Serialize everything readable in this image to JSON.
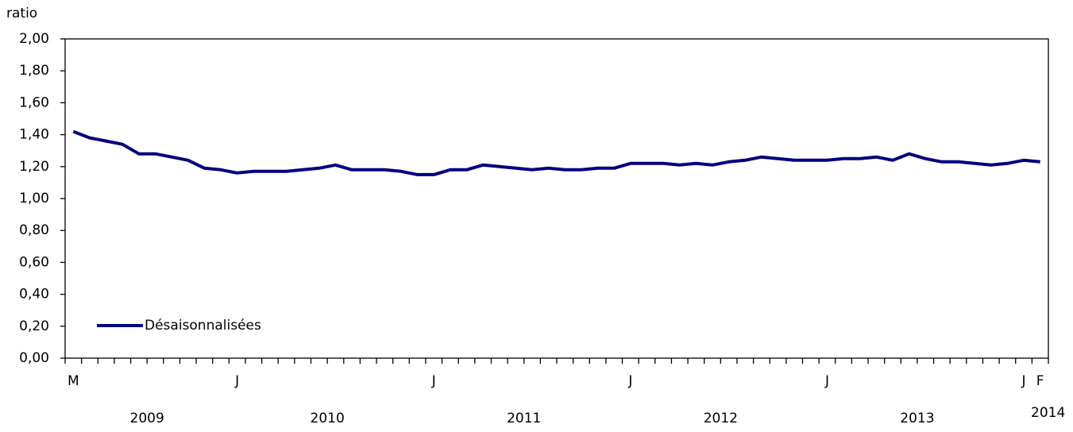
{
  "chart_data": {
    "type": "line",
    "y_axis_label": "ratio",
    "categories": [
      "M",
      null,
      null,
      null,
      null,
      null,
      null,
      null,
      null,
      null,
      "J",
      null,
      null,
      null,
      null,
      null,
      null,
      null,
      null,
      null,
      null,
      null,
      "J",
      null,
      null,
      null,
      null,
      null,
      null,
      null,
      null,
      null,
      null,
      null,
      "J",
      null,
      null,
      null,
      null,
      null,
      null,
      null,
      null,
      null,
      null,
      null,
      "J",
      null,
      null,
      null,
      null,
      null,
      null,
      null,
      null,
      null,
      null,
      null,
      "J",
      "F"
    ],
    "year_labels": [
      "2009",
      "2010",
      "2011",
      "2012",
      "2013",
      "2014"
    ],
    "series": [
      {
        "name": "Désaisonnalisées",
        "color": "#000080",
        "values": [
          1.42,
          1.38,
          1.36,
          1.34,
          1.28,
          1.28,
          1.26,
          1.24,
          1.19,
          1.18,
          1.16,
          1.17,
          1.17,
          1.17,
          1.18,
          1.19,
          1.21,
          1.18,
          1.18,
          1.18,
          1.17,
          1.15,
          1.15,
          1.18,
          1.18,
          1.21,
          1.2,
          1.19,
          1.18,
          1.19,
          1.18,
          1.18,
          1.19,
          1.19,
          1.22,
          1.22,
          1.22,
          1.21,
          1.22,
          1.21,
          1.23,
          1.24,
          1.26,
          1.25,
          1.24,
          1.24,
          1.24,
          1.25,
          1.25,
          1.26,
          1.24,
          1.28,
          1.25,
          1.23,
          1.23,
          1.22,
          1.21,
          1.22,
          1.24,
          1.23
        ]
      }
    ],
    "ylim": [
      0,
      2
    ],
    "yticks": [
      {
        "value": 0,
        "label": "0,00"
      },
      {
        "value": 0.2,
        "label": "0,20"
      },
      {
        "value": 0.4,
        "label": "0,40"
      },
      {
        "value": 0.6,
        "label": "0,60"
      },
      {
        "value": 0.8,
        "label": "0,80"
      },
      {
        "value": 1,
        "label": "1,00"
      },
      {
        "value": 1.2,
        "label": "1,20"
      },
      {
        "value": 1.4,
        "label": "1,40"
      },
      {
        "value": 1.6,
        "label": "1,60"
      },
      {
        "value": 1.8,
        "label": "1,80"
      },
      {
        "value": 2,
        "label": "2,00"
      }
    ],
    "grid": false,
    "legend": "lower left"
  }
}
